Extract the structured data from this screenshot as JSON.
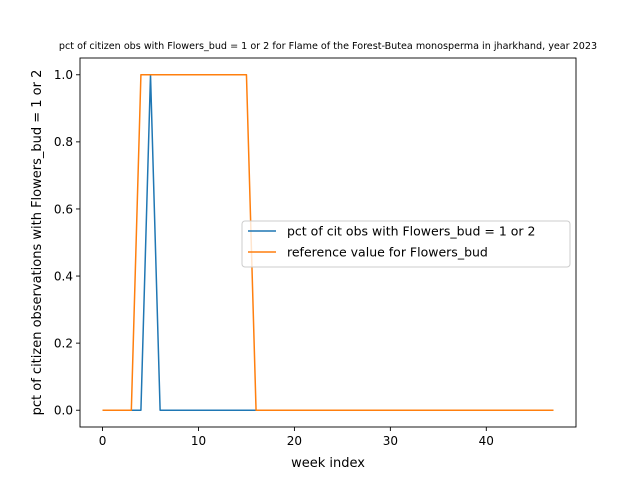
{
  "chart_data": {
    "type": "line",
    "title": "pct of citizen obs with Flowers_bud = 1 or 2 for Flame of the Forest-Butea monosperma in jharkhand, year 2023",
    "xlabel": "week index",
    "ylabel": "pct of citizen observations with Flowers_bud = 1 or 2",
    "xlim": [
      -2.35,
      49.35
    ],
    "ylim": [
      -0.05,
      1.05
    ],
    "xticks": [
      0,
      10,
      20,
      30,
      40
    ],
    "xtick_labels": [
      "0",
      "10",
      "20",
      "30",
      "40"
    ],
    "yticks": [
      0.0,
      0.2,
      0.4,
      0.6,
      0.8,
      1.0
    ],
    "ytick_labels": [
      "0.0",
      "0.2",
      "0.4",
      "0.6",
      "0.8",
      "1.0"
    ],
    "grid": false,
    "legend_position": "center-right",
    "x": [
      0,
      1,
      2,
      3,
      4,
      5,
      6,
      7,
      8,
      9,
      10,
      11,
      12,
      13,
      14,
      15,
      16,
      17,
      18,
      19,
      20,
      21,
      22,
      23,
      24,
      25,
      26,
      27,
      28,
      29,
      30,
      31,
      32,
      33,
      34,
      35,
      36,
      37,
      38,
      39,
      40,
      41,
      42,
      43,
      44,
      45,
      46,
      47
    ],
    "series": [
      {
        "name": "pct of cit obs with Flowers_bud = 1 or 2",
        "color": "#1f77b4",
        "values": [
          0,
          0,
          0,
          0,
          0,
          1,
          0,
          0,
          0,
          0,
          0,
          0,
          0,
          0,
          0,
          0,
          0,
          0,
          0,
          0,
          0,
          0,
          0,
          0,
          0,
          0,
          0,
          0,
          0,
          0,
          0,
          0,
          0,
          0,
          0,
          0,
          0,
          0,
          0,
          0,
          0,
          0,
          0,
          0,
          0,
          0,
          0,
          0
        ]
      },
      {
        "name": "reference value for Flowers_bud",
        "color": "#ff7f0e",
        "values": [
          0,
          0,
          0,
          0,
          1,
          1,
          1,
          1,
          1,
          1,
          1,
          1,
          1,
          1,
          1,
          1,
          0,
          0,
          0,
          0,
          0,
          0,
          0,
          0,
          0,
          0,
          0,
          0,
          0,
          0,
          0,
          0,
          0,
          0,
          0,
          0,
          0,
          0,
          0,
          0,
          0,
          0,
          0,
          0,
          0,
          0,
          0,
          0
        ]
      }
    ]
  }
}
